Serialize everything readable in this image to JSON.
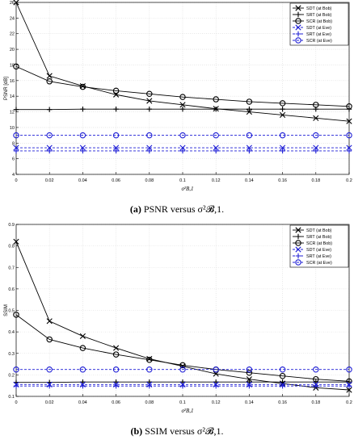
{
  "colors": {
    "bob": "#000000",
    "eve": "#1f1fd6"
  },
  "captions": [
    {
      "tag": "(a)",
      "text": "PSNR versus σ²𝓑,1."
    },
    {
      "tag": "(b)",
      "text": "SSIM versus σ²𝓑,1."
    }
  ],
  "chart_data": [
    {
      "type": "line",
      "xlabel": "σ²B,1",
      "ylabel": "PSNR [dB]",
      "xlim": [
        0,
        0.2
      ],
      "ylim": [
        4,
        26
      ],
      "xticks": [
        "0",
        "0.02",
        "0.04",
        "0.06",
        "0.08",
        "0.1",
        "0.12",
        "0.14",
        "0.16",
        "0.18",
        "0.2"
      ],
      "yticks": [
        "4",
        "6",
        "8",
        "10",
        "12",
        "14",
        "16",
        "18",
        "20",
        "22",
        "24",
        "26"
      ],
      "grid": true,
      "legend": "top-right",
      "x": [
        0,
        0.02,
        0.04,
        0.06,
        0.08,
        0.1,
        0.12,
        0.14,
        0.16,
        0.18,
        0.2
      ],
      "series": [
        {
          "name": "SDT (at Bob)",
          "marker": "x",
          "dash": false,
          "color": "#000000",
          "values": [
            26,
            16.6,
            15.3,
            14.2,
            13.4,
            12.9,
            12.4,
            12.0,
            11.6,
            11.2,
            10.8
          ]
        },
        {
          "name": "SRT (at Bob)",
          "marker": "plus",
          "dash": false,
          "color": "#000000",
          "values": [
            12.3,
            12.3,
            12.35,
            12.35,
            12.35,
            12.35,
            12.35,
            12.35,
            12.35,
            12.35,
            12.35
          ]
        },
        {
          "name": "SCR (at Bob)",
          "marker": "circle",
          "dash": false,
          "color": "#000000",
          "values": [
            17.8,
            15.9,
            15.2,
            14.7,
            14.3,
            13.9,
            13.6,
            13.3,
            13.1,
            12.9,
            12.7
          ]
        },
        {
          "name": "SDT (at Eve)",
          "marker": "x",
          "dash": true,
          "color": "#1f1fd6",
          "values": [
            7.4,
            7.4,
            7.4,
            7.4,
            7.4,
            7.4,
            7.4,
            7.4,
            7.4,
            7.4,
            7.4
          ]
        },
        {
          "name": "SRT (at Eve)",
          "marker": "plus",
          "dash": true,
          "color": "#1f1fd6",
          "values": [
            7.0,
            7.0,
            7.0,
            7.0,
            7.0,
            7.0,
            7.0,
            7.0,
            7.0,
            7.0,
            7.0
          ]
        },
        {
          "name": "SCR (at Eve)",
          "marker": "circle",
          "dash": true,
          "color": "#1f1fd6",
          "values": [
            9.0,
            9.0,
            9.0,
            9.0,
            9.0,
            9.0,
            9.0,
            9.0,
            9.0,
            9.0,
            9.0
          ]
        }
      ]
    },
    {
      "type": "line",
      "xlabel": "σ²B,1",
      "ylabel": "SSIM",
      "xlim": [
        0,
        0.2
      ],
      "ylim": [
        0.1,
        0.9
      ],
      "xticks": [
        "0",
        "0.02",
        "0.04",
        "0.06",
        "0.08",
        "0.1",
        "0.12",
        "0.14",
        "0.16",
        "0.18",
        "0.2"
      ],
      "yticks": [
        "0.1",
        "0.2",
        "0.3",
        "0.4",
        "0.5",
        "0.6",
        "0.7",
        "0.8",
        "0.9"
      ],
      "grid": true,
      "legend": "top-right",
      "x": [
        0,
        0.02,
        0.04,
        0.06,
        0.08,
        0.1,
        0.12,
        0.14,
        0.16,
        0.18,
        0.2
      ],
      "series": [
        {
          "name": "SDT (at Bob)",
          "marker": "x",
          "dash": false,
          "color": "#000000",
          "values": [
            0.82,
            0.45,
            0.38,
            0.325,
            0.275,
            0.24,
            0.205,
            0.18,
            0.16,
            0.14,
            0.13
          ]
        },
        {
          "name": "SRT (at Bob)",
          "marker": "plus",
          "dash": false,
          "color": "#000000",
          "values": [
            0.165,
            0.165,
            0.167,
            0.167,
            0.167,
            0.167,
            0.167,
            0.167,
            0.167,
            0.167,
            0.167
          ]
        },
        {
          "name": "SCR (at Bob)",
          "marker": "circle",
          "dash": false,
          "color": "#000000",
          "values": [
            0.48,
            0.365,
            0.325,
            0.295,
            0.27,
            0.245,
            0.225,
            0.21,
            0.195,
            0.18,
            0.17
          ]
        },
        {
          "name": "SDT (at Eve)",
          "marker": "x",
          "dash": true,
          "color": "#1f1fd6",
          "values": [
            0.155,
            0.155,
            0.155,
            0.155,
            0.155,
            0.155,
            0.155,
            0.155,
            0.155,
            0.155,
            0.155
          ]
        },
        {
          "name": "SRT (at Eve)",
          "marker": "plus",
          "dash": true,
          "color": "#1f1fd6",
          "values": [
            0.148,
            0.148,
            0.148,
            0.148,
            0.148,
            0.148,
            0.148,
            0.148,
            0.148,
            0.148,
            0.148
          ]
        },
        {
          "name": "SCR (at Eve)",
          "marker": "circle",
          "dash": true,
          "color": "#1f1fd6",
          "values": [
            0.225,
            0.225,
            0.225,
            0.225,
            0.225,
            0.225,
            0.225,
            0.225,
            0.225,
            0.225,
            0.225
          ]
        }
      ]
    }
  ]
}
